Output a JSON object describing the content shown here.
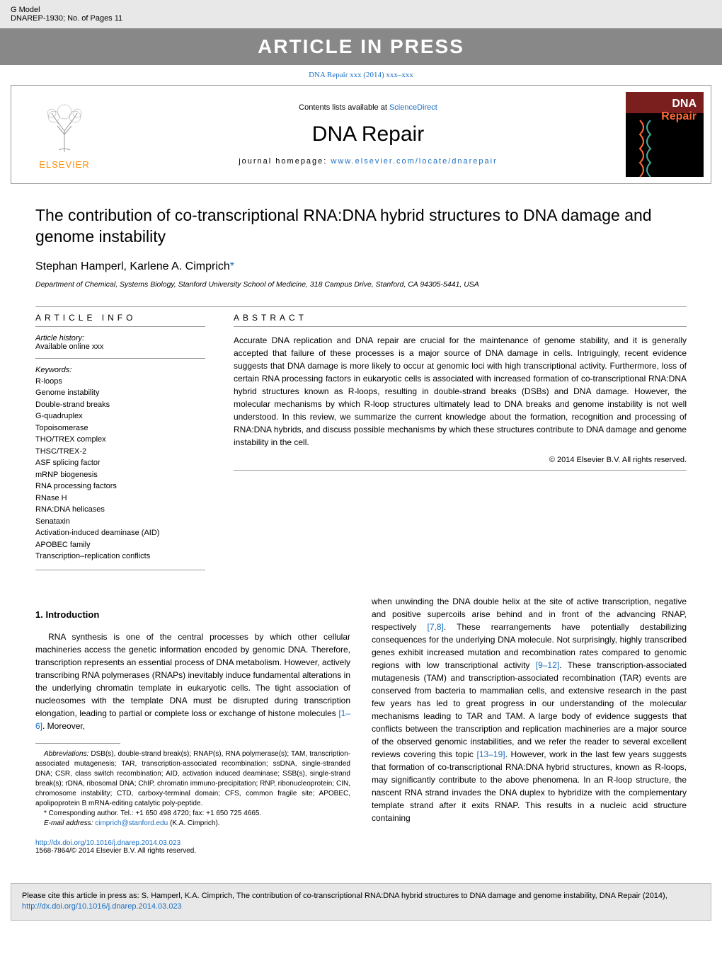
{
  "header": {
    "g_model": "G Model",
    "doc_id": "DNAREP-1930;   No. of Pages 11",
    "in_press": "ARTICLE IN PRESS"
  },
  "citation_top": "DNA Repair xxx (2014) xxx–xxx",
  "journal_box": {
    "contents": "Contents lists available at ",
    "sciencedirect": "ScienceDirect",
    "journal_name": "DNA Repair",
    "homepage_label": "journal homepage: ",
    "homepage_url": "www.elsevier.com/locate/dnarepair",
    "elsevier": "ELSEVIER",
    "cover_dna": "DNA",
    "cover_repair": "Repair"
  },
  "article": {
    "title": "The contribution of co-transcriptional RNA:DNA hybrid structures to DNA damage and genome instability",
    "authors": "Stephan Hamperl, Karlene A. Cimprich",
    "affiliation": "Department of Chemical, Systems Biology, Stanford University School of Medicine, 318 Campus Drive, Stanford, CA 94305-5441, USA"
  },
  "article_info": {
    "header": "ARTICLE INFO",
    "history_label": "Article history:",
    "history_value": "Available online xxx",
    "keywords_label": "Keywords:",
    "keywords": [
      "R-loops",
      "Genome instability",
      "Double-strand breaks",
      "G-quadruplex",
      "Topoisomerase",
      "THO/TREX complex",
      "THSC/TREX-2",
      "ASF splicing factor",
      "mRNP biogenesis",
      "RNA processing factors",
      "RNase H",
      "RNA:DNA helicases",
      "Senataxin",
      "Activation-induced deaminase (AID)",
      "APOBEC family",
      "Transcription–replication conflicts"
    ]
  },
  "abstract": {
    "header": "ABSTRACT",
    "text": "Accurate DNA replication and DNA repair are crucial for the maintenance of genome stability, and it is generally accepted that failure of these processes is a major source of DNA damage in cells. Intriguingly, recent evidence suggests that DNA damage is more likely to occur at genomic loci with high transcriptional activity. Furthermore, loss of certain RNA processing factors in eukaryotic cells is associated with increased formation of co-transcriptional RNA:DNA hybrid structures known as R-loops, resulting in double-strand breaks (DSBs) and DNA damage. However, the molecular mechanisms by which R-loop structures ultimately lead to DNA breaks and genome instability is not well understood. In this review, we summarize the current knowledge about the formation, recognition and processing of RNA:DNA hybrids, and discuss possible mechanisms by which these structures contribute to DNA damage and genome instability in the cell.",
    "copyright": "© 2014 Elsevier B.V. All rights reserved."
  },
  "introduction": {
    "header": "1.  Introduction",
    "para1": "RNA synthesis is one of the central processes by which other cellular machineries access the genetic information encoded by genomic DNA. Therefore, transcription represents an essential process of DNA metabolism. However, actively transcribing RNA polymerases (RNAPs) inevitably induce fundamental alterations in the underlying chromatin template in eukaryotic cells. The tight association of nucleosomes with the template DNA must be disrupted during transcription elongation, leading to partial or complete loss or exchange of histone molecules ",
    "ref1": "[1–6]",
    "para1b": ". Moreover,",
    "para2a": "when unwinding the DNA double helix at the site of active transcription, negative and positive supercoils arise behind and in front of the advancing RNAP, respectively ",
    "ref2": "[7,8]",
    "para2b": ". These rearrangements have potentially destabilizing consequences for the underlying DNA molecule. Not surprisingly, highly transcribed genes exhibit increased mutation and recombination rates compared to genomic regions with low transcriptional activity ",
    "ref3": "[9–12]",
    "para2c": ". These transcription-associated mutagenesis (TAM) and transcription-associated recombination (TAR) events are conserved from bacteria to mammalian cells, and extensive research in the past few years has led to great progress in our understanding of the molecular mechanisms leading to TAR and TAM. A large body of evidence suggests that conflicts between the transcription and replication machineries are a major source of the observed genomic instabilities, and we refer the reader to several excellent reviews covering this topic ",
    "ref4": "[13–19]",
    "para2d": ". However, work in the last few years suggests that formation of co-transcriptional RNA:DNA hybrid structures, known as R-loops, may significantly contribute to the above phenomena. In an R-loop structure, the nascent RNA strand invades the DNA duplex to hybridize with the complementary template strand after it exits RNAP. This results in a nucleic acid structure containing"
  },
  "footnotes": {
    "abbrev_label": "Abbreviations:",
    "abbrev_text": "  DSB(s), double-strand break(s); RNAP(s), RNA polymerase(s); TAM, transcription-associated mutagenesis; TAR, transcription-associated recombination; ssDNA, single-stranded DNA; CSR, class switch recombination; AID, activation induced deaminase; SSB(s), single-strand break(s); rDNA, ribosomal DNA; ChIP, chromatin immuno-precipitation; RNP, ribonucleoprotein; CIN, chromosome instability; CTD, carboxy-terminal domain; CFS, common fragile site; APOBEC, apolipoprotein B mRNA-editing catalytic poly-peptide.",
    "corresponding": "* Corresponding author. Tel.: +1 650 498 4720; fax: +1 650 725 4665.",
    "email_label": "E-mail address: ",
    "email": "cimprich@stanford.edu",
    "email_suffix": " (K.A. Cimprich)."
  },
  "doi": {
    "url": "http://dx.doi.org/10.1016/j.dnarep.2014.03.023",
    "issn": "1568-7864/© 2014 Elsevier B.V. All rights reserved."
  },
  "cite_box": {
    "text": "Please cite this article in press as:  S. Hamperl, K.A. Cimprich, The contribution of co-transcriptional RNA:DNA hybrid structures to DNA damage and genome instability, DNA Repair (2014), ",
    "link": "http://dx.doi.org/10.1016/j.dnarep.2014.03.023"
  }
}
